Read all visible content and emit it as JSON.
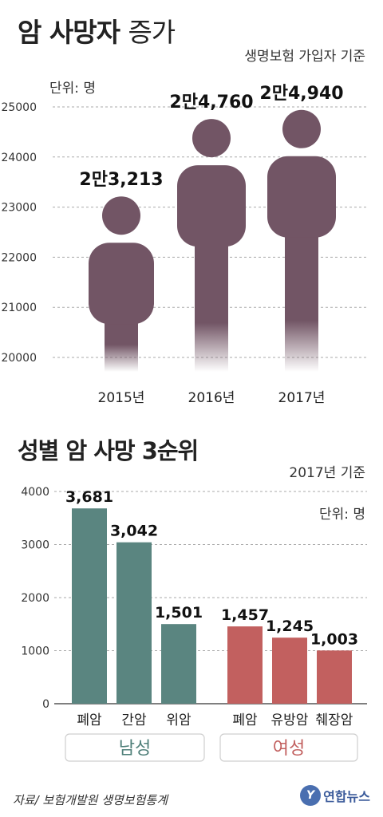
{
  "header": {
    "title_bold": "암 사망자",
    "title_light": "증가",
    "subtitle": "생명보험 가입자 기준",
    "unit": "단위: 명"
  },
  "section2": {
    "title": "성별 암 사망 3순위",
    "year_basis": "2017년 기준",
    "unit": "단위: 명"
  },
  "footer": {
    "source": "자료/ 보험개발원 생명보험통계",
    "logo_mark": "Y",
    "logo_name": "연합뉴스"
  },
  "colors": {
    "figure": "#725565",
    "male": "#5a8580",
    "female": "#c2605f",
    "male_pill_text": "#4f7f79",
    "female_pill_text": "#c2605f"
  },
  "chart_data": [
    {
      "type": "bar",
      "title": "암 사망자 증가",
      "subtitle": "생명보험 가입자 기준",
      "categories": [
        "2015년",
        "2016년",
        "2017년"
      ],
      "values": [
        23213,
        24760,
        24940
      ],
      "data_labels": [
        "2만3,213",
        "2만4,760",
        "2만4,940"
      ],
      "ylim": [
        20000,
        25000
      ],
      "yticks": [
        20000,
        21000,
        22000,
        23000,
        24000,
        25000
      ],
      "ylabel": "단위: 명",
      "grid": true,
      "mark_style": "person-silhouette"
    },
    {
      "type": "bar",
      "title": "성별 암 사망 3순위",
      "subtitle": "2017년 기준",
      "ylim": [
        0,
        4000
      ],
      "yticks": [
        0,
        1000,
        2000,
        3000,
        4000
      ],
      "ylabel": "단위: 명",
      "grid": true,
      "groups": [
        {
          "name": "남성",
          "categories": [
            "폐암",
            "간암",
            "위암"
          ],
          "values": [
            3681,
            3042,
            1501
          ],
          "data_labels": [
            "3,681",
            "3,042",
            "1,501"
          ]
        },
        {
          "name": "여성",
          "categories": [
            "폐암",
            "유방암",
            "췌장암"
          ],
          "values": [
            1457,
            1245,
            1003
          ],
          "data_labels": [
            "1,457",
            "1,245",
            "1,003"
          ]
        }
      ]
    }
  ]
}
